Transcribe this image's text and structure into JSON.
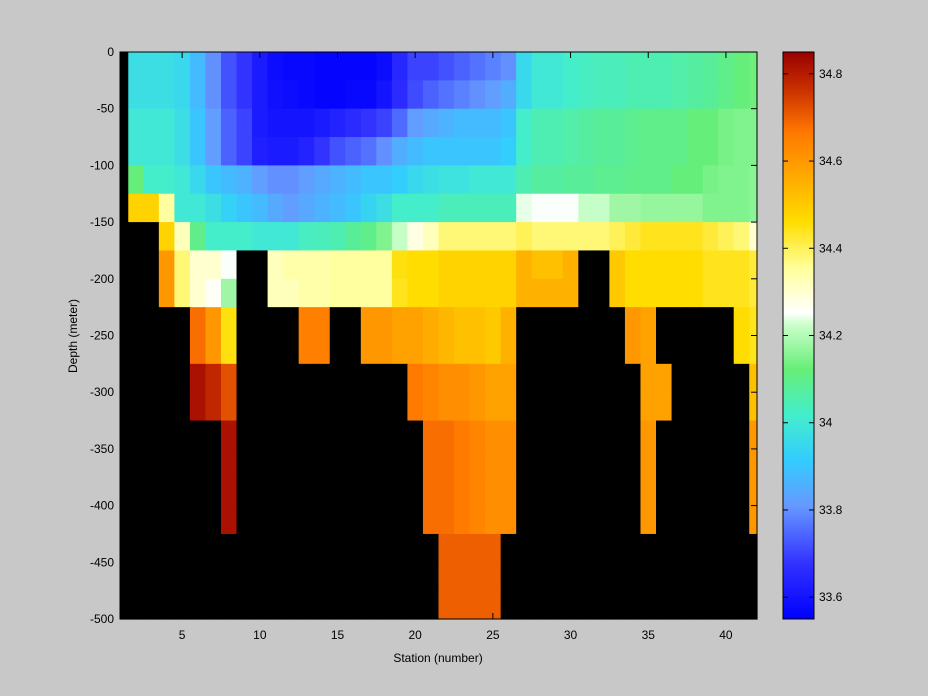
{
  "chart_data": {
    "type": "heatmap",
    "title": "",
    "xlabel": "Station (number)",
    "ylabel": "Depth (meter)",
    "xlim": [
      1,
      42
    ],
    "ylim": [
      -500,
      0
    ],
    "xticks": [
      5,
      10,
      15,
      20,
      25,
      30,
      35,
      40
    ],
    "yticks": [
      0,
      -50,
      -100,
      -150,
      -200,
      -250,
      -300,
      -350,
      -400,
      -450,
      -500
    ],
    "colorbar": {
      "range": [
        33.55,
        34.85
      ],
      "ticks": [
        33.6,
        33.8,
        34,
        34.2,
        34.4,
        34.6,
        34.8
      ],
      "colormap": "blue-cyan-green-white-yellow-orange-darkred"
    },
    "no_data_color": "#000000",
    "stations": [
      2,
      3,
      4,
      5,
      6,
      7,
      8,
      9,
      10,
      11,
      12,
      13,
      14,
      15,
      16,
      17,
      18,
      19,
      20,
      21,
      22,
      23,
      24,
      25,
      26,
      27,
      28,
      29,
      30,
      31,
      32,
      33,
      34,
      35,
      36,
      37,
      38,
      39,
      40,
      41,
      42
    ],
    "depth_bin_edges": [
      0,
      -25,
      -50,
      -75,
      -100,
      -125,
      -150,
      -175,
      -200,
      -225,
      -250,
      -275,
      -300,
      -325,
      -350,
      -375,
      -400,
      -425,
      -450,
      -475,
      -500
    ],
    "salinity": [
      [
        33.97,
        33.97,
        33.97,
        33.95,
        33.88,
        33.8,
        33.72,
        33.68,
        33.62,
        33.58,
        33.57,
        33.57,
        33.56,
        33.56,
        33.56,
        33.56,
        33.58,
        33.65,
        33.7,
        33.7,
        33.72,
        33.74,
        33.76,
        33.78,
        33.8,
        33.95,
        34.0,
        34.0,
        34.02,
        34.03,
        34.04,
        34.04,
        34.05,
        34.05,
        34.05,
        34.06,
        34.07,
        34.08,
        34.1,
        34.12,
        34.13
      ],
      [
        33.97,
        33.97,
        33.97,
        33.95,
        33.88,
        33.8,
        33.72,
        33.68,
        33.62,
        33.59,
        33.58,
        33.57,
        33.56,
        33.56,
        33.57,
        33.57,
        33.6,
        33.66,
        33.71,
        33.74,
        33.76,
        33.78,
        33.8,
        33.82,
        33.85,
        33.95,
        34.0,
        34.0,
        34.02,
        34.03,
        34.04,
        34.04,
        34.05,
        34.05,
        34.05,
        34.06,
        34.07,
        34.08,
        34.1,
        34.12,
        34.13
      ],
      [
        34.0,
        34.0,
        34.0,
        33.97,
        33.9,
        33.82,
        33.74,
        33.7,
        33.62,
        33.6,
        33.6,
        33.6,
        33.62,
        33.64,
        33.66,
        33.68,
        33.7,
        33.75,
        33.82,
        33.84,
        33.86,
        33.88,
        33.88,
        33.88,
        33.9,
        34.02,
        34.05,
        34.05,
        34.06,
        34.07,
        34.08,
        34.08,
        34.09,
        34.1,
        34.1,
        34.1,
        34.12,
        34.12,
        34.14,
        34.15,
        34.15
      ],
      [
        34.0,
        34.0,
        34.0,
        33.97,
        33.9,
        33.82,
        33.74,
        33.7,
        33.63,
        33.62,
        33.62,
        33.64,
        33.68,
        33.72,
        33.74,
        33.76,
        33.8,
        33.85,
        33.88,
        33.9,
        33.9,
        33.9,
        33.9,
        33.9,
        33.92,
        34.02,
        34.05,
        34.05,
        34.06,
        34.07,
        34.08,
        34.08,
        34.09,
        34.1,
        34.1,
        34.1,
        34.12,
        34.12,
        34.14,
        34.15,
        34.15
      ],
      [
        34.12,
        34.02,
        34.02,
        34.0,
        33.95,
        33.9,
        33.88,
        33.86,
        33.82,
        33.8,
        33.8,
        33.82,
        33.84,
        33.86,
        33.88,
        33.9,
        33.9,
        33.92,
        33.95,
        33.97,
        33.98,
        33.98,
        34.0,
        34.0,
        34.0,
        34.05,
        34.07,
        34.07,
        34.08,
        34.08,
        34.09,
        34.09,
        34.1,
        34.1,
        34.1,
        34.12,
        34.12,
        34.14,
        34.15,
        34.15,
        34.16
      ],
      [
        34.48,
        34.48,
        34.35,
        34.0,
        34.0,
        33.97,
        33.93,
        33.9,
        33.88,
        33.84,
        33.82,
        33.84,
        33.86,
        33.88,
        33.9,
        33.94,
        33.97,
        34.02,
        34.02,
        34.02,
        34.04,
        34.04,
        34.04,
        34.04,
        34.04,
        34.24,
        34.25,
        34.25,
        34.25,
        34.22,
        34.22,
        34.18,
        34.18,
        34.17,
        34.17,
        34.17,
        34.17,
        34.15,
        34.15,
        34.15,
        34.16
      ],
      [
        null,
        null,
        34.48,
        34.32,
        34.1,
        34.02,
        34.02,
        34.02,
        34.0,
        34.0,
        34.0,
        34.03,
        34.04,
        34.05,
        34.08,
        34.1,
        34.15,
        34.22,
        34.28,
        34.32,
        34.38,
        34.38,
        34.38,
        34.38,
        34.38,
        34.4,
        34.38,
        34.38,
        34.38,
        34.38,
        34.38,
        34.4,
        34.42,
        34.44,
        34.44,
        34.44,
        34.44,
        34.42,
        34.4,
        34.38,
        34.3
      ],
      [
        null,
        null,
        34.6,
        34.38,
        34.3,
        34.3,
        34.25,
        null,
        null,
        34.32,
        34.34,
        34.34,
        34.34,
        34.35,
        34.35,
        34.35,
        34.35,
        34.45,
        34.46,
        34.46,
        34.48,
        34.48,
        34.48,
        34.48,
        34.48,
        34.55,
        34.52,
        34.52,
        34.55,
        null,
        null,
        34.5,
        34.46,
        34.46,
        34.46,
        34.46,
        34.46,
        34.44,
        34.44,
        34.44,
        34.42
      ],
      [
        null,
        null,
        34.6,
        34.38,
        34.3,
        34.26,
        34.18,
        null,
        null,
        34.32,
        34.32,
        34.34,
        34.34,
        34.35,
        34.35,
        34.35,
        34.35,
        34.44,
        34.46,
        34.46,
        34.48,
        34.48,
        34.48,
        34.48,
        34.48,
        34.55,
        34.55,
        34.55,
        34.55,
        null,
        null,
        34.5,
        34.46,
        34.46,
        34.46,
        34.46,
        34.46,
        34.44,
        34.44,
        34.44,
        34.42
      ],
      [
        null,
        null,
        null,
        null,
        34.68,
        34.6,
        34.45,
        null,
        null,
        null,
        null,
        34.65,
        34.65,
        null,
        null,
        34.6,
        34.6,
        34.58,
        34.58,
        34.56,
        34.54,
        34.52,
        34.52,
        34.5,
        34.55,
        null,
        null,
        null,
        null,
        null,
        null,
        null,
        34.6,
        34.58,
        null,
        null,
        null,
        null,
        null,
        34.46,
        34.44
      ],
      [
        null,
        null,
        null,
        null,
        34.68,
        34.6,
        34.45,
        null,
        null,
        null,
        null,
        34.65,
        34.65,
        null,
        null,
        34.6,
        34.6,
        34.58,
        34.58,
        34.56,
        34.54,
        34.52,
        34.52,
        34.5,
        34.55,
        null,
        null,
        null,
        null,
        null,
        null,
        null,
        34.6,
        34.58,
        null,
        null,
        null,
        null,
        null,
        34.46,
        34.44
      ],
      [
        null,
        null,
        null,
        null,
        34.82,
        34.78,
        34.72,
        null,
        null,
        null,
        null,
        null,
        null,
        null,
        null,
        null,
        null,
        null,
        34.66,
        34.64,
        34.62,
        34.62,
        34.6,
        34.58,
        34.58,
        null,
        null,
        null,
        null,
        null,
        null,
        null,
        null,
        34.58,
        34.58,
        null,
        null,
        null,
        null,
        null,
        34.52
      ],
      [
        null,
        null,
        null,
        null,
        34.82,
        34.78,
        34.72,
        null,
        null,
        null,
        null,
        null,
        null,
        null,
        null,
        null,
        null,
        null,
        34.66,
        34.64,
        34.62,
        34.62,
        34.6,
        34.58,
        34.58,
        null,
        null,
        null,
        null,
        null,
        null,
        null,
        null,
        34.58,
        34.58,
        null,
        null,
        null,
        null,
        null,
        34.52
      ],
      [
        null,
        null,
        null,
        null,
        null,
        null,
        34.82,
        null,
        null,
        null,
        null,
        null,
        null,
        null,
        null,
        null,
        null,
        null,
        null,
        34.68,
        34.68,
        34.66,
        34.64,
        34.62,
        34.62,
        null,
        null,
        null,
        null,
        null,
        null,
        null,
        null,
        34.6,
        null,
        null,
        null,
        null,
        null,
        null,
        34.6
      ],
      [
        null,
        null,
        null,
        null,
        null,
        null,
        34.82,
        null,
        null,
        null,
        null,
        null,
        null,
        null,
        null,
        null,
        null,
        null,
        null,
        34.68,
        34.68,
        34.66,
        34.64,
        34.62,
        34.62,
        null,
        null,
        null,
        null,
        null,
        null,
        null,
        null,
        34.6,
        null,
        null,
        null,
        null,
        null,
        null,
        34.6
      ],
      [
        null,
        null,
        null,
        null,
        null,
        null,
        34.82,
        null,
        null,
        null,
        null,
        null,
        null,
        null,
        null,
        null,
        null,
        null,
        null,
        34.68,
        34.68,
        34.66,
        34.64,
        34.62,
        34.62,
        null,
        null,
        null,
        null,
        null,
        null,
        null,
        null,
        34.6,
        null,
        null,
        null,
        null,
        null,
        null,
        34.6
      ],
      [
        null,
        null,
        null,
        null,
        null,
        null,
        34.82,
        null,
        null,
        null,
        null,
        null,
        null,
        null,
        null,
        null,
        null,
        null,
        null,
        34.68,
        34.68,
        34.66,
        34.64,
        34.62,
        34.62,
        null,
        null,
        null,
        null,
        null,
        null,
        null,
        null,
        34.6,
        null,
        null,
        null,
        null,
        null,
        null,
        34.6
      ],
      [
        null,
        null,
        null,
        null,
        null,
        null,
        null,
        null,
        null,
        null,
        null,
        null,
        null,
        null,
        null,
        null,
        null,
        null,
        null,
        null,
        34.7,
        34.7,
        34.7,
        34.7,
        null,
        null,
        null,
        null,
        null,
        null,
        null,
        null,
        null,
        null,
        null,
        null,
        null,
        null,
        null,
        null,
        null
      ],
      [
        null,
        null,
        null,
        null,
        null,
        null,
        null,
        null,
        null,
        null,
        null,
        null,
        null,
        null,
        null,
        null,
        null,
        null,
        null,
        null,
        34.7,
        34.7,
        34.7,
        34.7,
        null,
        null,
        null,
        null,
        null,
        null,
        null,
        null,
        null,
        null,
        null,
        null,
        null,
        null,
        null,
        null,
        null
      ],
      [
        null,
        null,
        null,
        null,
        null,
        null,
        null,
        null,
        null,
        null,
        null,
        null,
        null,
        null,
        null,
        null,
        null,
        null,
        null,
        null,
        34.7,
        34.7,
        34.7,
        34.7,
        null,
        null,
        null,
        null,
        null,
        null,
        null,
        null,
        null,
        null,
        null,
        null,
        null,
        null,
        null,
        null,
        null
      ]
    ]
  }
}
